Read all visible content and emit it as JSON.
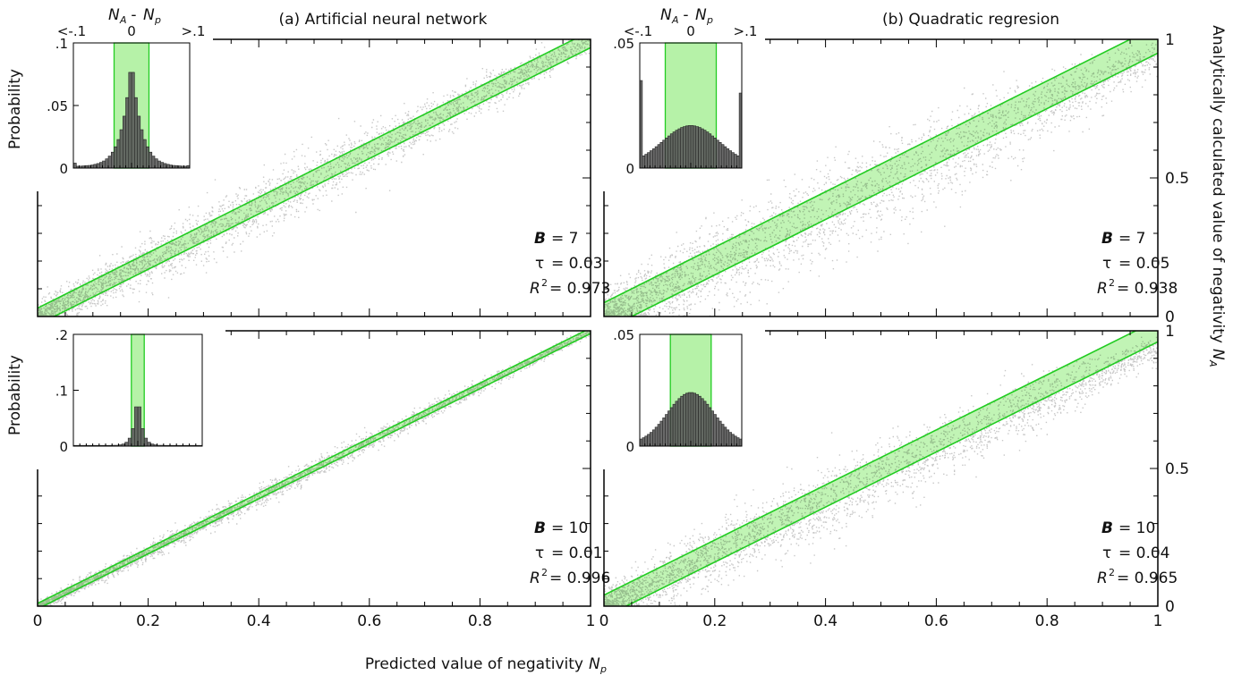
{
  "figure": {
    "xlabel": "Predicted value of negativity",
    "xlabel_sym": "N",
    "xlabel_sub": "p",
    "ylabel": "Analytically calculated value of negativity",
    "ylabel_sym": "N",
    "ylabel_sub": "A",
    "inset_ylabel": "Probability",
    "inset_top_label": {
      "a": "N",
      "a_sub": "A",
      "dash": " - ",
      "b": "N",
      "b_sub": "p"
    },
    "inset_xticks": [
      "<-.1",
      "0",
      ">.1"
    ]
  },
  "colors": {
    "band_fill": "#b6f2a8",
    "band_line": "#22cc22",
    "scatter": "#000000",
    "hist": "#5a5a5a"
  },
  "chart_data": [
    {
      "id": "a-top",
      "type": "scatter",
      "title": "(a) Artificial neural network",
      "x_ticks": [
        "0",
        "0.2",
        "0.4",
        "0.6",
        "0.8",
        "1"
      ],
      "y_ticks": [],
      "xlim": [
        0,
        1
      ],
      "ylim": [
        0,
        1
      ],
      "band": {
        "lower": -0.03,
        "upper": 0.03
      },
      "stats": {
        "B": "7",
        "tau": "0.03",
        "R2": "0.973"
      },
      "trend": {
        "slope": 1.0,
        "intercept": 0.0,
        "spread": 0.035,
        "curve": 0.0
      },
      "inset": {
        "yticks": [
          ".1",
          ".05",
          "0"
        ],
        "ymax": 0.1,
        "tick_values": [
          0.1,
          0.05,
          0
        ],
        "band_halfwidth": 0.03,
        "hist_peak": 0.088,
        "hist_width": 0.016,
        "shape": "laplace",
        "edge_left": 0.004,
        "edge_right": 0.002
      }
    },
    {
      "id": "b-top",
      "type": "scatter",
      "title": "(b) Quadratic regresion",
      "x_ticks": [
        "0",
        "0.2",
        "0.4",
        "0.6",
        "0.8",
        "1"
      ],
      "y_ticks": [
        "1",
        "0.5",
        "0"
      ],
      "xlim": [
        0,
        1
      ],
      "ylim": [
        0,
        1
      ],
      "band": {
        "lower": -0.05,
        "upper": 0.05
      },
      "stats": {
        "B": "7",
        "tau": "0.05",
        "R2": "0.938"
      },
      "trend": {
        "slope": 0.95,
        "intercept": 0.0,
        "spread": 0.06,
        "curve": 0.0
      },
      "inset": {
        "yticks": [
          ".05",
          "0"
        ],
        "ymax": 0.05,
        "tick_values": [
          0.05,
          0
        ],
        "band_halfwidth": 0.05,
        "hist_peak": 0.016,
        "hist_width": 0.055,
        "shape": "gauss",
        "edge_left": 0.035,
        "edge_right": 0.03
      }
    },
    {
      "id": "a-bottom",
      "type": "scatter",
      "title": "",
      "x_ticks": [
        "0",
        "0.2",
        "0.4",
        "0.6",
        "0.8",
        "1"
      ],
      "y_ticks": [],
      "xlim": [
        0,
        1
      ],
      "ylim": [
        0,
        1
      ],
      "band": {
        "lower": -0.01,
        "upper": 0.01
      },
      "stats": {
        "B": "10",
        "tau": "0.01",
        "R2": "0.996"
      },
      "trend": {
        "slope": 1.0,
        "intercept": 0.0,
        "spread": 0.012,
        "curve": 0.0
      },
      "inset": {
        "yticks": [
          ".2",
          ".1",
          "0"
        ],
        "ymax": 0.2,
        "tick_values": [
          0.2,
          0.1,
          0
        ],
        "band_halfwidth": 0.01,
        "hist_peak": 0.105,
        "hist_width": 0.006,
        "shape": "laplace",
        "edge_left": 0.0,
        "edge_right": 0.0
      }
    },
    {
      "id": "b-bottom",
      "type": "scatter",
      "title": "",
      "x_ticks": [
        "0",
        "0.2",
        "0.4",
        "0.6",
        "0.8",
        "1"
      ],
      "y_ticks": [
        "1",
        "0.5",
        "0"
      ],
      "xlim": [
        0,
        1
      ],
      "ylim": [
        0,
        1
      ],
      "band": {
        "lower": -0.04,
        "upper": 0.04
      },
      "stats": {
        "B": "10",
        "tau": "0.04",
        "R2": "0.965"
      },
      "trend": {
        "slope": 0.96,
        "intercept": 0.0,
        "spread": 0.045,
        "curve": -0.02
      },
      "inset": {
        "yticks": [
          ".05",
          "0"
        ],
        "ymax": 0.05,
        "tick_values": [
          0.05,
          0
        ],
        "band_halfwidth": 0.04,
        "hist_peak": 0.023,
        "hist_width": 0.045,
        "shape": "gauss",
        "edge_left": 0.0,
        "edge_right": 0.0
      }
    }
  ]
}
